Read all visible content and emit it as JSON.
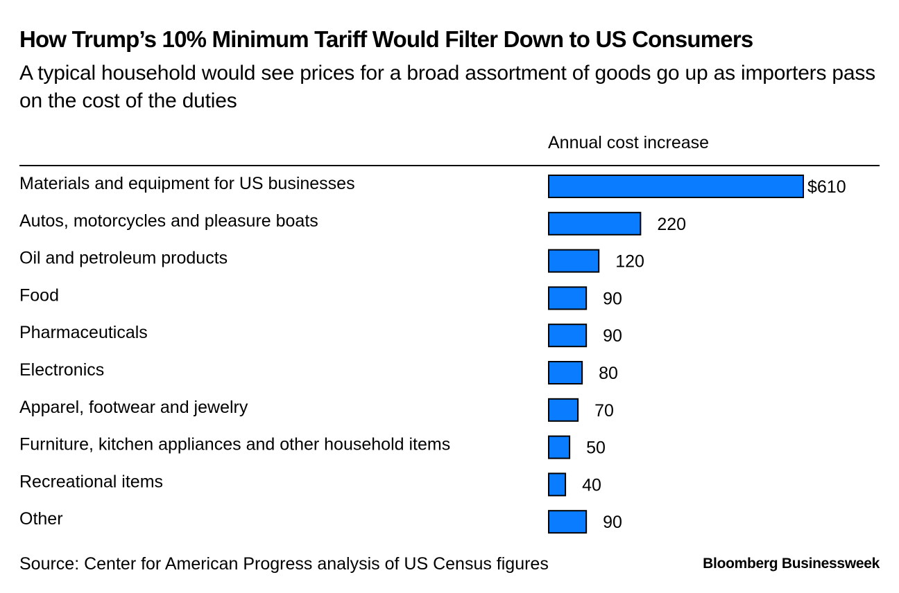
{
  "header": {
    "title": "How Trump’s 10% Minimum Tariff Would Filter Down to US Consumers",
    "subtitle": "A typical household would see prices for a broad assortment of goods go up as importers pass on the cost of the duties",
    "column_header": "Annual cost increase"
  },
  "chart_data": {
    "type": "bar",
    "orientation": "horizontal",
    "title": "How Trump’s 10% Minimum Tariff Would Filter Down to US Consumers",
    "subtitle": "A typical household would see prices for a broad assortment of goods go up as importers pass on the cost of the duties",
    "categories": [
      "Materials and equipment for US businesses",
      "Autos, motorcycles and pleasure boats",
      "Oil and petroleum products",
      "Food",
      "Pharmaceuticals",
      "Electronics",
      "Apparel, footwear and jewelry",
      "Furniture, kitchen appliances and other household items",
      "Recreational items",
      "Other"
    ],
    "values": [
      610,
      220,
      120,
      90,
      90,
      80,
      70,
      50,
      40,
      90
    ],
    "value_labels": [
      "$610",
      "220",
      "120",
      "90",
      "90",
      "80",
      "70",
      "50",
      "40",
      "90"
    ],
    "xlabel": "Annual cost increase",
    "ylabel": "",
    "xlim": [
      0,
      610
    ],
    "grid": false,
    "legend": "none",
    "bar_color": "#0a7cff"
  },
  "footer": {
    "source": "Source: Center for American Progress analysis of US Census figures",
    "brand": "Bloomberg Businessweek"
  }
}
